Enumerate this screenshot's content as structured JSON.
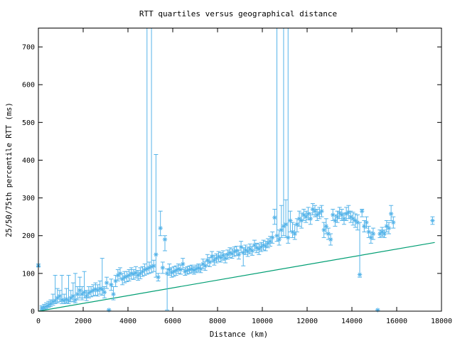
{
  "chart_data": {
    "type": "scatter",
    "title": "RTT quartiles versus geographical distance",
    "xlabel": "Distance (km)",
    "ylabel": "25/50/75th percentile RTT (ms)",
    "xlim": [
      0,
      18000
    ],
    "ylim": [
      0,
      750
    ],
    "xticks": [
      0,
      2000,
      4000,
      6000,
      8000,
      10000,
      12000,
      14000,
      16000,
      18000
    ],
    "yticks": [
      0,
      100,
      200,
      300,
      400,
      500,
      600,
      700
    ],
    "grid": false,
    "colors": {
      "points": "#56b4e9",
      "reference_line": "#009e73"
    },
    "reference_line": {
      "x": [
        0,
        17700
      ],
      "y": [
        0,
        182
      ]
    },
    "points": [
      [
        0,
        120,
        118,
        125
      ],
      [
        150,
        8,
        4,
        14
      ],
      [
        250,
        10,
        6,
        18
      ],
      [
        350,
        12,
        6,
        22
      ],
      [
        450,
        16,
        10,
        26
      ],
      [
        550,
        20,
        12,
        30
      ],
      [
        650,
        25,
        16,
        45
      ],
      [
        750,
        28,
        20,
        95
      ],
      [
        850,
        35,
        22,
        60
      ],
      [
        950,
        40,
        25,
        55
      ],
      [
        1050,
        30,
        20,
        95
      ],
      [
        1150,
        28,
        20,
        45
      ],
      [
        1250,
        32,
        22,
        60
      ],
      [
        1350,
        28,
        20,
        95
      ],
      [
        1450,
        35,
        25,
        55
      ],
      [
        1550,
        40,
        25,
        75
      ],
      [
        1650,
        30,
        22,
        100
      ],
      [
        1750,
        45,
        30,
        65
      ],
      [
        1850,
        55,
        35,
        90
      ],
      [
        1950,
        45,
        30,
        65
      ],
      [
        2050,
        50,
        35,
        105
      ],
      [
        2150,
        40,
        28,
        55
      ],
      [
        2250,
        48,
        35,
        65
      ],
      [
        2350,
        52,
        38,
        65
      ],
      [
        2450,
        55,
        40,
        70
      ],
      [
        2550,
        58,
        42,
        75
      ],
      [
        2650,
        55,
        40,
        70
      ],
      [
        2750,
        60,
        45,
        80
      ],
      [
        2850,
        58,
        42,
        140
      ],
      [
        2950,
        50,
        35,
        65
      ],
      [
        3050,
        75,
        60,
        90
      ],
      [
        3150,
        3,
        3,
        3
      ],
      [
        3250,
        70,
        55,
        85
      ],
      [
        3350,
        45,
        30,
        65
      ],
      [
        3450,
        80,
        65,
        95
      ],
      [
        3550,
        95,
        80,
        110
      ],
      [
        3650,
        100,
        85,
        115
      ],
      [
        3750,
        85,
        70,
        100
      ],
      [
        3850,
        90,
        75,
        105
      ],
      [
        3950,
        92,
        78,
        105
      ],
      [
        4050,
        95,
        80,
        110
      ],
      [
        4150,
        100,
        85,
        115
      ],
      [
        4250,
        98,
        84,
        110
      ],
      [
        4350,
        102,
        88,
        118
      ],
      [
        4450,
        95,
        82,
        108
      ],
      [
        4550,
        100,
        86,
        115
      ],
      [
        4650,
        105,
        92,
        118
      ],
      [
        4750,
        110,
        95,
        125
      ],
      [
        4850,
        112,
        98,
        750
      ],
      [
        4950,
        115,
        100,
        130
      ],
      [
        5050,
        118,
        102,
        750
      ],
      [
        5150,
        120,
        105,
        135
      ],
      [
        5250,
        150,
        90,
        415
      ],
      [
        5350,
        90,
        80,
        100
      ],
      [
        5450,
        220,
        200,
        265
      ],
      [
        5550,
        115,
        100,
        130
      ],
      [
        5650,
        190,
        160,
        200
      ],
      [
        5750,
        100,
        3,
        112
      ],
      [
        5850,
        110,
        95,
        125
      ],
      [
        5950,
        102,
        90,
        115
      ],
      [
        6050,
        105,
        92,
        118
      ],
      [
        6150,
        108,
        95,
        120
      ],
      [
        6250,
        112,
        100,
        125
      ],
      [
        6350,
        110,
        98,
        122
      ],
      [
        6450,
        125,
        110,
        140
      ],
      [
        6550,
        105,
        95,
        115
      ],
      [
        6650,
        108,
        98,
        118
      ],
      [
        6750,
        110,
        100,
        120
      ],
      [
        6850,
        112,
        102,
        122
      ],
      [
        6950,
        108,
        98,
        118
      ],
      [
        7050,
        112,
        102,
        122
      ],
      [
        7150,
        115,
        105,
        125
      ],
      [
        7250,
        112,
        102,
        122
      ],
      [
        7350,
        125,
        112,
        138
      ],
      [
        7450,
        120,
        108,
        132
      ],
      [
        7550,
        135,
        120,
        150
      ],
      [
        7650,
        130,
        118,
        142
      ],
      [
        7750,
        145,
        130,
        158
      ],
      [
        7850,
        135,
        122,
        148
      ],
      [
        7950,
        140,
        128,
        152
      ],
      [
        8050,
        145,
        132,
        158
      ],
      [
        8150,
        142,
        130,
        155
      ],
      [
        8250,
        148,
        135,
        160
      ],
      [
        8350,
        140,
        128,
        152
      ],
      [
        8450,
        150,
        138,
        162
      ],
      [
        8550,
        155,
        142,
        168
      ],
      [
        8650,
        152,
        140,
        165
      ],
      [
        8750,
        158,
        145,
        170
      ],
      [
        8850,
        160,
        148,
        172
      ],
      [
        8950,
        150,
        138,
        162
      ],
      [
        9050,
        170,
        155,
        185
      ],
      [
        9150,
        155,
        120,
        168
      ],
      [
        9250,
        162,
        150,
        175
      ],
      [
        9350,
        158,
        145,
        170
      ],
      [
        9450,
        165,
        152,
        178
      ],
      [
        9550,
        160,
        148,
        172
      ],
      [
        9650,
        175,
        160,
        188
      ],
      [
        9750,
        168,
        155,
        180
      ],
      [
        9850,
        165,
        150,
        178
      ],
      [
        9950,
        170,
        158,
        182
      ],
      [
        10050,
        175,
        162,
        188
      ],
      [
        10150,
        172,
        160,
        185
      ],
      [
        10250,
        180,
        168,
        192
      ],
      [
        10350,
        185,
        172,
        198
      ],
      [
        10450,
        195,
        180,
        210
      ],
      [
        10550,
        248,
        230,
        270
      ],
      [
        10650,
        200,
        185,
        750
      ],
      [
        10750,
        190,
        175,
        215
      ],
      [
        10850,
        215,
        195,
        280
      ],
      [
        10950,
        225,
        200,
        750
      ],
      [
        11050,
        230,
        195,
        295
      ],
      [
        11150,
        195,
        180,
        750
      ],
      [
        11250,
        240,
        210,
        265
      ],
      [
        11350,
        210,
        195,
        235
      ],
      [
        11450,
        205,
        190,
        230
      ],
      [
        11550,
        230,
        210,
        245
      ],
      [
        11650,
        245,
        225,
        265
      ],
      [
        11750,
        240,
        220,
        260
      ],
      [
        11850,
        255,
        240,
        270
      ],
      [
        11950,
        250,
        235,
        265
      ],
      [
        12050,
        258,
        242,
        275
      ],
      [
        12150,
        245,
        230,
        260
      ],
      [
        12250,
        270,
        255,
        285
      ],
      [
        12350,
        265,
        250,
        280
      ],
      [
        12450,
        255,
        240,
        270
      ],
      [
        12550,
        260,
        245,
        275
      ],
      [
        12650,
        265,
        250,
        280
      ],
      [
        12750,
        215,
        195,
        235
      ],
      [
        12850,
        225,
        205,
        245
      ],
      [
        12950,
        205,
        190,
        220
      ],
      [
        13050,
        190,
        175,
        205
      ],
      [
        13150,
        255,
        240,
        270
      ],
      [
        13250,
        240,
        225,
        255
      ],
      [
        13350,
        250,
        235,
        265
      ],
      [
        13450,
        260,
        245,
        275
      ],
      [
        13550,
        255,
        240,
        270
      ],
      [
        13650,
        245,
        230,
        260
      ],
      [
        13750,
        258,
        240,
        275
      ],
      [
        13850,
        262,
        245,
        280
      ],
      [
        13950,
        250,
        235,
        265
      ],
      [
        14050,
        245,
        228,
        262
      ],
      [
        14150,
        240,
        222,
        258
      ],
      [
        14250,
        235,
        215,
        255
      ],
      [
        14350,
        97,
        90,
        235
      ],
      [
        14450,
        265,
        250,
        270
      ],
      [
        14550,
        225,
        210,
        240
      ],
      [
        14650,
        235,
        220,
        250
      ],
      [
        14750,
        210,
        195,
        225
      ],
      [
        14850,
        195,
        180,
        210
      ],
      [
        14950,
        205,
        190,
        220
      ],
      [
        15150,
        3,
        3,
        3
      ],
      [
        15250,
        205,
        195,
        215
      ],
      [
        15350,
        210,
        198,
        222
      ],
      [
        15450,
        205,
        195,
        215
      ],
      [
        15550,
        225,
        210,
        240
      ],
      [
        15650,
        220,
        205,
        235
      ],
      [
        15750,
        258,
        240,
        280
      ],
      [
        15850,
        235,
        220,
        250
      ],
      [
        17600,
        240,
        230,
        250
      ]
    ]
  }
}
